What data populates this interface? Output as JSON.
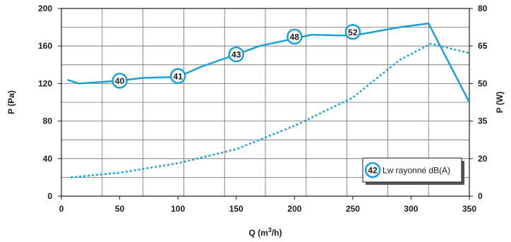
{
  "chart_data": {
    "type": "line",
    "x_axis": {
      "label_prefix": "Q (m",
      "label_sup": "3",
      "label_suffix": "/h)",
      "range": [
        0,
        350
      ],
      "ticks": [
        "0",
        "50",
        "100",
        "150",
        "200",
        "250",
        "300",
        "350"
      ]
    },
    "y_left": {
      "label": "P (Pa)",
      "range": [
        0,
        200
      ],
      "ticks": [
        "0",
        "40",
        "80",
        "120",
        "160",
        "200"
      ]
    },
    "y_right": {
      "label": "P (W)",
      "range": [
        0,
        80
      ],
      "ticks": [
        "0",
        "20",
        "35",
        "50",
        "65",
        "80"
      ]
    },
    "grid": true,
    "series": [
      {
        "axis": "left",
        "style": "solid",
        "x": [
          5,
          15,
          50,
          70,
          100,
          120,
          150,
          170,
          200,
          215,
          250,
          290,
          315,
          350
        ],
        "y": [
          124,
          120,
          123,
          126,
          127,
          138,
          151,
          160,
          168,
          172,
          171,
          180,
          184,
          100
        ]
      },
      {
        "axis": "right",
        "style": "dotted",
        "x": [
          8,
          50,
          100,
          150,
          200,
          250,
          290,
          317,
          350
        ],
        "y": [
          8,
          10,
          14,
          20,
          30,
          42,
          58,
          65,
          61
        ]
      }
    ],
    "annotations": [
      {
        "x": 50,
        "y": 123,
        "label": "40"
      },
      {
        "x": 100,
        "y": 128,
        "label": "41"
      },
      {
        "x": 150,
        "y": 151,
        "label": "43"
      },
      {
        "x": 200,
        "y": 170,
        "label": "48"
      },
      {
        "x": 250,
        "y": 175,
        "label": "52"
      }
    ],
    "legend": {
      "position": "bottom-right",
      "marker_label": "42",
      "text": "Lw rayonné dB(A)"
    }
  },
  "colors": {
    "line": "#1a9fd6",
    "axis": "#1a1a1a",
    "grid": "#6a6a6a",
    "shadow": "#555555"
  }
}
